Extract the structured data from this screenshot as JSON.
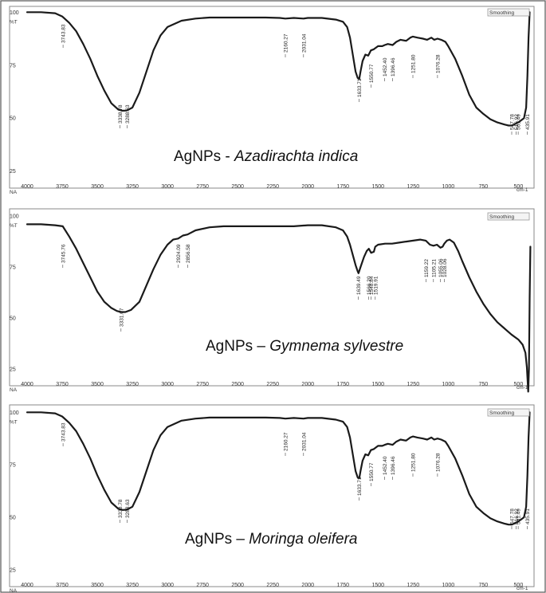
{
  "chart_data": [
    {
      "type": "line",
      "title_prefix": "AgNPs - ",
      "title_species": "Azadirachta indica",
      "smoothing_label": "Smoothing",
      "x_unit": "cm-1",
      "y_unit": "%T",
      "x_origin_label": "NA",
      "xlim": [
        4000,
        400
      ],
      "ylim": [
        20,
        102
      ],
      "x_ticks": [
        4000,
        3750,
        3500,
        3250,
        3000,
        2750,
        2500,
        2250,
        2000,
        1750,
        1500,
        1250,
        1000,
        750,
        500
      ],
      "y_ticks": [
        100,
        75,
        50,
        25
      ],
      "peak_labels": [
        "3743.83",
        "3338.78",
        "3288.63",
        "2160.27",
        "2031.04",
        "1633.71",
        "1550.77",
        "1452.40",
        "1396.46",
        "1251.80",
        "1076.28",
        "547.78",
        "516.92",
        "501.49",
        "435.91"
      ],
      "peak_positions": [
        3743.83,
        3338.78,
        3288.63,
        2160.27,
        2031.04,
        1633.71,
        1550.77,
        1452.4,
        1396.46,
        1251.8,
        1076.28,
        547.78,
        516.92,
        501.49,
        435.91
      ],
      "series": [
        {
          "x": [
            4000,
            3900,
            3800,
            3750,
            3700,
            3650,
            3600,
            3550,
            3500,
            3450,
            3400,
            3350,
            3320,
            3290,
            3250,
            3200,
            3150,
            3100,
            3050,
            3000,
            2900,
            2800,
            2700,
            2600,
            2500,
            2400,
            2300,
            2200,
            2160,
            2100,
            2031,
            2000,
            1900,
            1800,
            1750,
            1720,
            1700,
            1680,
            1660,
            1645,
            1634,
            1625,
            1610,
            1590,
            1570,
            1551,
            1530,
            1500,
            1470,
            1452,
            1430,
            1396,
            1370,
            1340,
            1300,
            1270,
            1252,
            1220,
            1180,
            1150,
            1120,
            1100,
            1076,
            1050,
            1020,
            1000,
            950,
            900,
            850,
            800,
            750,
            700,
            650,
            600,
            570,
            548,
            530,
            517,
            501,
            480,
            460,
            445,
            436,
            428,
            420
          ],
          "y": [
            100,
            100,
            99.5,
            98,
            95,
            91,
            85,
            78,
            70,
            63,
            57,
            54,
            53.5,
            53.6,
            55,
            62,
            72,
            82,
            89,
            93,
            96,
            97,
            97.5,
            97.5,
            97.5,
            97.5,
            97.5,
            97.3,
            97,
            97.3,
            97,
            97.3,
            97.3,
            96.5,
            95.5,
            93,
            88,
            80,
            72,
            69,
            68.5,
            72,
            77,
            80,
            79.5,
            82,
            82.5,
            84,
            84,
            84.5,
            85,
            84.5,
            86,
            87,
            86.5,
            88,
            88.5,
            88,
            87.5,
            87,
            88,
            87,
            87.5,
            87,
            86,
            84,
            78,
            70,
            61,
            55,
            52,
            49.5,
            48,
            47,
            46.5,
            46.5,
            47,
            47.5,
            48,
            49,
            50,
            55,
            70,
            88,
            100
          ]
        }
      ]
    },
    {
      "type": "line",
      "title_prefix": "AgNPs – ",
      "title_species": "Gymnema sylvestre",
      "smoothing_label": "Smoothing",
      "x_unit": "cm-1",
      "y_unit": "%T",
      "x_origin_label": "NA",
      "xlim": [
        4000,
        400
      ],
      "ylim": [
        20,
        102
      ],
      "x_ticks": [
        4000,
        3750,
        3500,
        3250,
        3000,
        2750,
        2500,
        2250,
        2000,
        1750,
        1500,
        1250,
        1000,
        750,
        500
      ],
      "y_ticks": [
        100,
        75,
        50,
        25
      ],
      "peak_labels": [
        "3745.76",
        "3331.07",
        "2924.09",
        "2856.58",
        "1639.49",
        "1566.20",
        "1548.84",
        "1519.91",
        "1159.22",
        "1105.21",
        "1055.06",
        "1028.06"
      ],
      "peak_positions": [
        3745.76,
        3331.07,
        2924.09,
        2856.58,
        1639.49,
        1566.2,
        1548.84,
        1519.91,
        1159.22,
        1105.21,
        1055.06,
        1028.06
      ],
      "series": [
        {
          "x": [
            4000,
            3900,
            3800,
            3746,
            3700,
            3650,
            3600,
            3550,
            3500,
            3450,
            3400,
            3360,
            3331,
            3300,
            3260,
            3200,
            3150,
            3100,
            3050,
            3000,
            2960,
            2924,
            2890,
            2857,
            2800,
            2700,
            2600,
            2500,
            2400,
            2300,
            2200,
            2100,
            2000,
            1900,
            1800,
            1750,
            1720,
            1700,
            1680,
            1660,
            1645,
            1639,
            1625,
            1600,
            1580,
            1566,
            1549,
            1530,
            1520,
            1500,
            1450,
            1400,
            1350,
            1300,
            1250,
            1200,
            1160,
            1130,
            1105,
            1080,
            1055,
            1040,
            1028,
            1010,
            990,
            960,
            930,
            900,
            850,
            800,
            750,
            700,
            650,
            600,
            550,
            500,
            470,
            450,
            440,
            430,
            425,
            420,
            415
          ],
          "y": [
            96,
            96,
            95.5,
            95,
            90,
            84,
            77,
            70,
            63,
            58,
            55,
            53.5,
            53,
            53,
            54,
            58,
            66,
            74,
            81,
            86,
            88.5,
            89,
            90.5,
            91,
            93,
            94.5,
            95,
            95,
            95,
            95,
            95,
            95,
            95.5,
            95.5,
            94.5,
            93,
            90,
            86,
            81,
            76,
            73,
            72,
            75,
            80,
            83,
            84,
            82,
            82.5,
            85,
            86,
            86.5,
            86.5,
            87,
            87.5,
            88,
            88.5,
            88,
            86,
            85.5,
            86,
            84.5,
            85,
            86.5,
            88,
            88.5,
            87,
            83,
            78,
            70,
            63,
            57,
            52,
            48,
            45,
            42,
            39.5,
            37,
            33,
            26,
            14,
            25,
            60,
            85
          ]
        }
      ]
    },
    {
      "type": "line",
      "title_prefix": "AgNPs – ",
      "title_species": "Moringa oleifera",
      "smoothing_label": "Smoothing",
      "x_unit": "cm-1",
      "y_unit": "%T",
      "x_origin_label": "NA",
      "xlim": [
        4000,
        400
      ],
      "ylim": [
        20,
        102
      ],
      "x_ticks": [
        4000,
        3750,
        3500,
        3250,
        3000,
        2750,
        2500,
        2250,
        2000,
        1750,
        1500,
        1250,
        1000,
        750,
        500
      ],
      "y_ticks": [
        100,
        75,
        50,
        25
      ],
      "peak_labels": [
        "3743.83",
        "3338.78",
        "3288.63",
        "2160.27",
        "2031.04",
        "1633.71",
        "1550.77",
        "1452.40",
        "1396.46",
        "1251.80",
        "1076.28",
        "547.78",
        "516.92",
        "501.49",
        "435.91"
      ],
      "peak_positions": [
        3743.83,
        3338.78,
        3288.63,
        2160.27,
        2031.04,
        1633.71,
        1550.77,
        1452.4,
        1396.46,
        1251.8,
        1076.28,
        547.78,
        516.92,
        501.49,
        435.91
      ],
      "series": [
        {
          "x": [
            4000,
            3900,
            3800,
            3750,
            3700,
            3650,
            3600,
            3550,
            3500,
            3450,
            3400,
            3350,
            3320,
            3290,
            3250,
            3200,
            3150,
            3100,
            3050,
            3000,
            2900,
            2800,
            2700,
            2600,
            2500,
            2400,
            2300,
            2200,
            2160,
            2100,
            2031,
            2000,
            1900,
            1800,
            1750,
            1720,
            1700,
            1680,
            1660,
            1645,
            1634,
            1625,
            1610,
            1590,
            1570,
            1551,
            1530,
            1500,
            1470,
            1452,
            1430,
            1396,
            1370,
            1340,
            1300,
            1270,
            1252,
            1220,
            1180,
            1150,
            1120,
            1100,
            1076,
            1050,
            1020,
            1000,
            950,
            900,
            850,
            800,
            750,
            700,
            650,
            600,
            570,
            548,
            530,
            517,
            501,
            480,
            460,
            445,
            436,
            428,
            420
          ],
          "y": [
            100,
            100,
            99.5,
            98,
            95,
            91,
            85,
            78,
            70,
            63,
            57,
            54,
            53.5,
            53.6,
            55,
            62,
            72,
            82,
            89,
            93,
            96,
            97,
            97.5,
            97.5,
            97.5,
            97.5,
            97.5,
            97.3,
            97,
            97.3,
            97,
            97.3,
            97.3,
            96.5,
            95.5,
            93,
            88,
            80,
            72,
            69,
            68.5,
            72,
            77,
            80,
            79.5,
            82,
            82.5,
            84,
            84,
            84.5,
            85,
            84.5,
            86,
            87,
            86.5,
            88,
            88.5,
            88,
            87.5,
            87,
            88,
            87,
            87.5,
            87,
            86,
            84,
            78,
            70,
            61,
            55,
            52,
            49.5,
            48,
            47,
            46.5,
            46.5,
            47,
            47.5,
            48,
            49,
            50,
            55,
            70,
            88,
            100
          ]
        }
      ]
    }
  ]
}
